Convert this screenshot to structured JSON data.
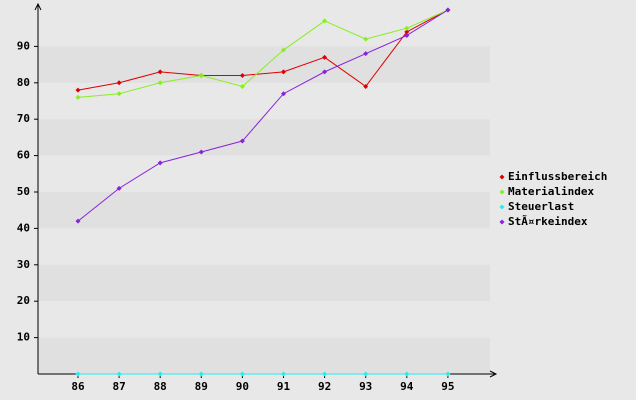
{
  "chart_data": {
    "type": "line",
    "categories": [
      "86",
      "87",
      "88",
      "89",
      "90",
      "91",
      "92",
      "93",
      "94",
      "95"
    ],
    "series": [
      {
        "name": "Einflussbereich",
        "color": "#e00000",
        "values": [
          78,
          80,
          83,
          82,
          82,
          83,
          87,
          79,
          94,
          100
        ]
      },
      {
        "name": "Materialindex",
        "color": "#88ee22",
        "values": [
          76,
          77,
          80,
          82,
          79,
          89,
          97,
          92,
          95,
          100
        ]
      },
      {
        "name": "Steuerlast",
        "color": "#22eeee",
        "values": [
          0,
          0,
          0,
          0,
          0,
          0,
          0,
          0,
          0,
          0
        ]
      },
      {
        "name": "StÃ¤rkeindex",
        "color": "#8822dd",
        "values": [
          42,
          51,
          58,
          61,
          64,
          77,
          83,
          88,
          93,
          100
        ]
      }
    ],
    "ylim": [
      0,
      100
    ],
    "yticks": [
      10,
      20,
      30,
      40,
      50,
      60,
      70,
      80,
      90
    ],
    "grid": true,
    "legend": "right"
  }
}
